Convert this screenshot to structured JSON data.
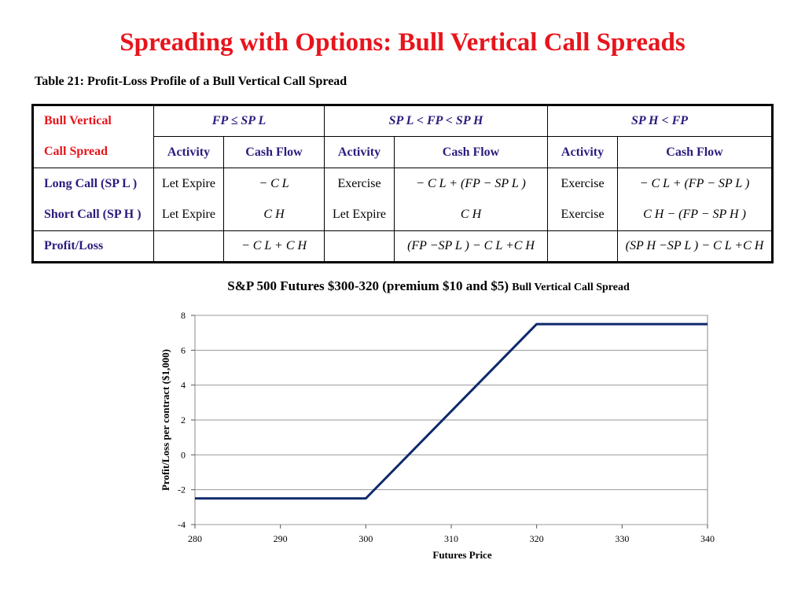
{
  "slide": {
    "title": "Spreading with Options: Bull Vertical Call Spreads",
    "table_caption": "Table 21: Profit-Loss Profile of a Bull Vertical Call Spread"
  },
  "table": {
    "row_header_top": "Bull Vertical",
    "row_header_bottom": "Call Spread",
    "ranges": [
      "FP ≤ SP L",
      "SP L < FP < SP H",
      "SP H < FP"
    ],
    "sub_headers": [
      "Activity",
      "Cash Flow",
      "Activity",
      "Cash Flow",
      "Activity",
      "Cash Flow"
    ],
    "rows": [
      {
        "label": "Long Call (SP L )",
        "cells": [
          "Let Expire",
          "− C L",
          "Exercise",
          "− C L + (FP − SP L )",
          "Exercise",
          "− C L + (FP − SP L )"
        ]
      },
      {
        "label": "Short Call (SP H )",
        "cells": [
          "Let Expire",
          "C H",
          "Let Expire",
          "C H",
          "Exercise",
          "C H − (FP − SP H )"
        ]
      },
      {
        "label": "Profit/Loss",
        "cells": [
          "",
          "− C L + C H",
          "",
          "(FP −SP L ) − C L +C H",
          "",
          "(SP H −SP L ) − C L +C H"
        ]
      }
    ]
  },
  "chart_heading": {
    "main": "S&P 500 Futures $300-320 (premium $10 and $5)",
    "sub": "Bull Vertical Call Spread"
  },
  "chart_data": {
    "type": "line",
    "title": "S&P 500 Futures $300-320 (premium $10 and $5) Bull Vertical Call Spread",
    "xlabel": "Futures Price",
    "ylabel": "Profit/Loss per contract ($1,000)",
    "xlim": [
      280,
      340
    ],
    "ylim": [
      -4,
      8
    ],
    "xticks": [
      280,
      290,
      300,
      310,
      320,
      330,
      340
    ],
    "yticks": [
      -4,
      -2,
      0,
      2,
      4,
      6,
      8
    ],
    "grid": "horizontal",
    "series": [
      {
        "x": [
          280,
          300,
          320,
          340
        ],
        "y": [
          -2.5,
          -2.5,
          7.5,
          7.5
        ],
        "color": "#0d2a6b"
      }
    ]
  }
}
